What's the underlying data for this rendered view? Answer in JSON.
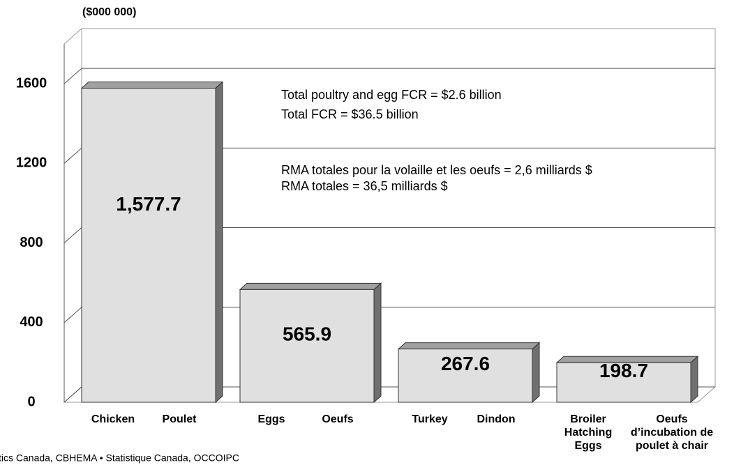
{
  "chart_data": {
    "type": "bar3d",
    "unit_label": "($000 000)",
    "categories": [
      "Chicken",
      "Eggs",
      "Turkey",
      "Broiler\nHatching\nEggs"
    ],
    "categories_fr": [
      "Poulet",
      "Oeufs",
      "Dindon",
      "Oeufs\nd’incubation de\npoulet à chair"
    ],
    "values": [
      1577.7,
      565.9,
      267.6,
      198.7
    ],
    "value_labels": [
      "1,577.7",
      "565.9",
      "267.6",
      "198.7"
    ],
    "ylim": [
      0,
      1800
    ],
    "yticks": [
      0,
      400,
      800,
      1200,
      1600
    ],
    "grid": true,
    "color": "#e0e0e0",
    "annotations": [
      "Total poultry and egg FCR = $2.6 billion",
      "Total FCR = $36.5 billion",
      "RMA totales pour la volaille et les oeufs = 2,6 milliards $",
      "RMA totales = 36,5 milliards $"
    ],
    "source": "tics Canada, CBHEMA • Statistique Canada, OCCOIPC"
  }
}
